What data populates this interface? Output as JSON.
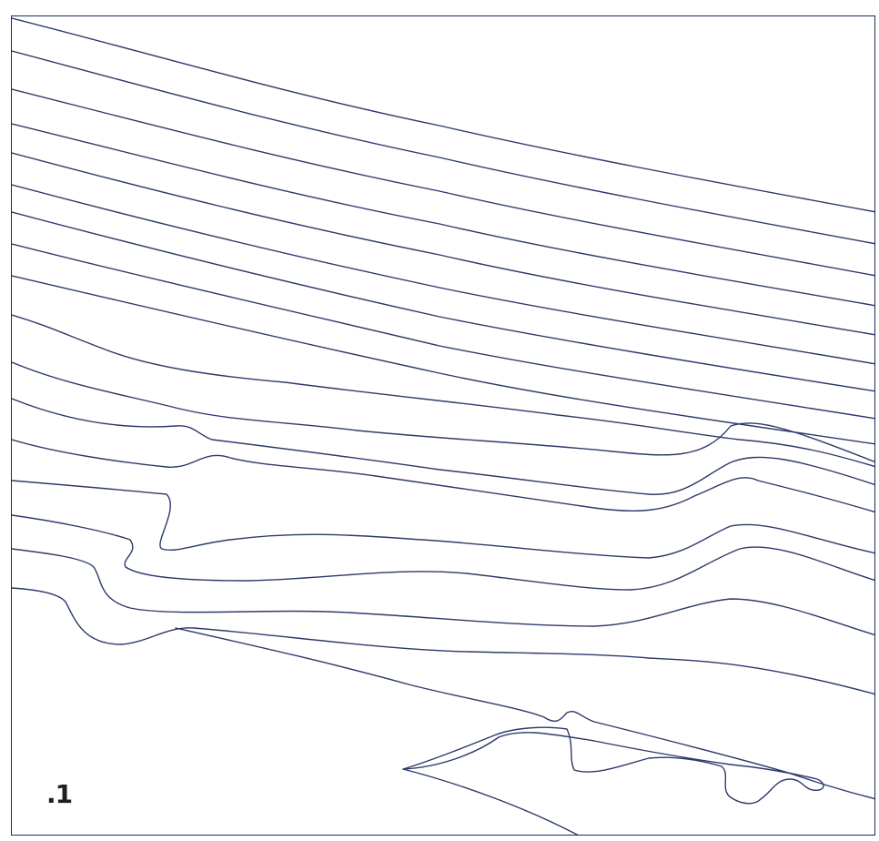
{
  "map": {
    "label": ".1",
    "line_color": "#2d3a6a",
    "frame_color": "#1b2a55",
    "background": "#ffffff"
  }
}
